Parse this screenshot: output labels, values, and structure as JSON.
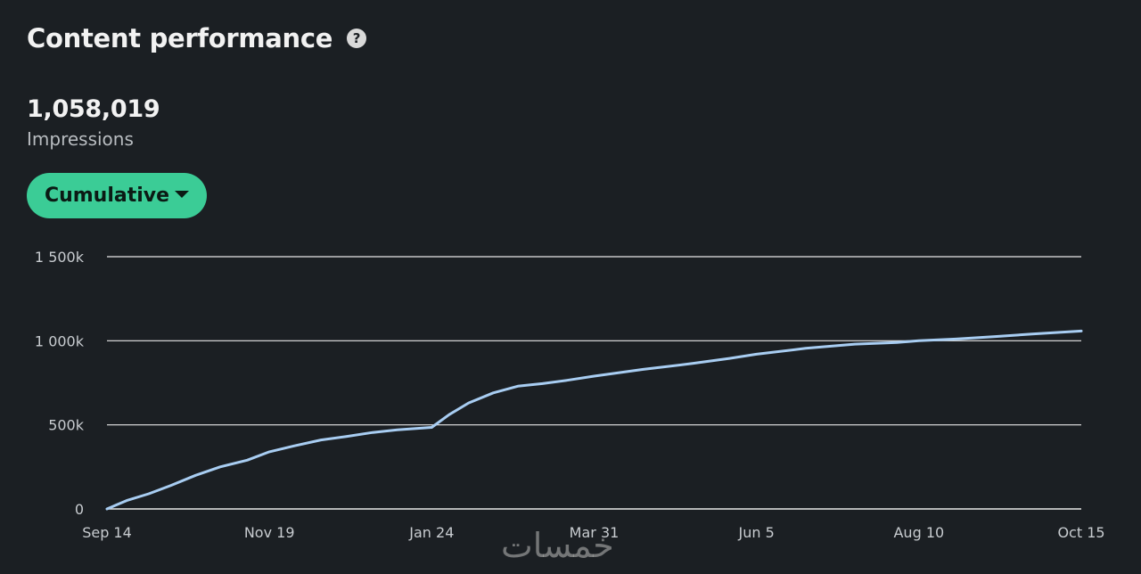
{
  "header": {
    "title": "Content performance",
    "help_icon": "help-circle-icon"
  },
  "metric": {
    "value": "1,058,019",
    "label": "Impressions"
  },
  "dropdown": {
    "selected": "Cumulative",
    "icon": "caret-down-icon"
  },
  "watermark": {
    "text": "خمسات"
  },
  "colors": {
    "background": "#1b1f23",
    "accent": "#3bcc96",
    "line": "#a8cdf2",
    "grid": "#e8e8e8"
  },
  "chart_data": {
    "type": "line",
    "title": "",
    "xlabel": "",
    "ylabel": "",
    "ylim": [
      0,
      1500000
    ],
    "yticks": [
      0,
      500000,
      1000000,
      1500000
    ],
    "ytick_labels": [
      "0",
      "500k",
      "1 000k",
      "1 500k"
    ],
    "xtick_labels": [
      "Sep 14",
      "Nov 19",
      "Jan 24",
      "Mar 31",
      "Jun 5",
      "Aug 10",
      "Oct 15"
    ],
    "grid": true,
    "series": [
      {
        "x": [
          "Sep 14",
          "Sep 22",
          "Oct 1",
          "Oct 10",
          "Oct 20",
          "Oct 30",
          "Nov 10",
          "Nov 19",
          "Nov 29",
          "Dec 10",
          "Dec 20",
          "Dec 31",
          "Jan 10",
          "Jan 24",
          "Jan 31",
          "Feb 8",
          "Feb 18",
          "Feb 28",
          "Mar 10",
          "Mar 20",
          "Mar 31",
          "Apr 20",
          "May 10",
          "May 25",
          "Jun 5",
          "Jun 25",
          "Jul 15",
          "Aug 1",
          "Aug 10",
          "Aug 25",
          "Sep 10",
          "Sep 25",
          "Oct 15"
        ],
        "y": [
          0,
          50000,
          90000,
          140000,
          200000,
          250000,
          290000,
          340000,
          375000,
          410000,
          430000,
          455000,
          470000,
          485000,
          560000,
          630000,
          690000,
          730000,
          745000,
          765000,
          790000,
          830000,
          865000,
          895000,
          920000,
          955000,
          980000,
          990000,
          1000000,
          1010000,
          1025000,
          1040000,
          1058019
        ]
      }
    ]
  }
}
